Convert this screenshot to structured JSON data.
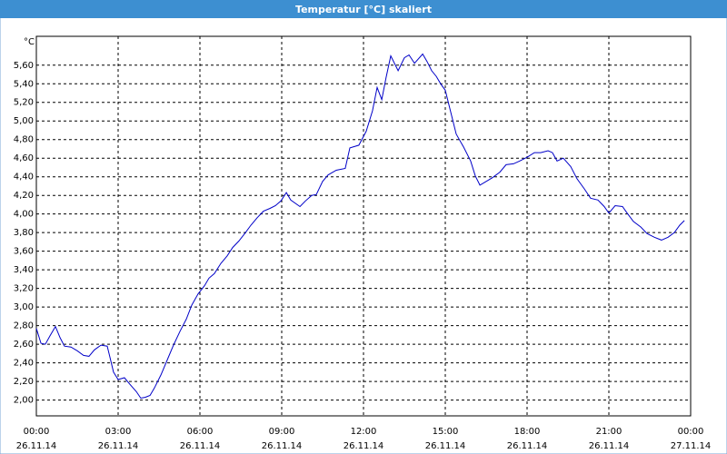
{
  "chart_data": {
    "type": "line",
    "title": "Temperatur [°C] skaliert",
    "y_unit": "°C",
    "series": [
      {
        "name": "Temperatur",
        "color": "#0000c8",
        "x": [
          0,
          0.17,
          0.33,
          0.5,
          0.7,
          0.87,
          1.03,
          1.27,
          1.5,
          1.73,
          1.93,
          2.13,
          2.37,
          2.6,
          2.7,
          2.83,
          3.0,
          3.23,
          3.43,
          3.67,
          3.83,
          4.0,
          4.17,
          4.33,
          4.57,
          4.8,
          5.03,
          5.27,
          5.5,
          5.7,
          5.93,
          6.17,
          6.33,
          6.53,
          6.77,
          7.0,
          7.2,
          7.43,
          7.67,
          7.87,
          8.1,
          8.33,
          8.57,
          8.77,
          8.97,
          9.17,
          9.33,
          9.67,
          9.87,
          10.1,
          10.27,
          10.5,
          10.7,
          11.0,
          11.33,
          11.5,
          11.83,
          12.1,
          12.33,
          12.5,
          12.67,
          12.83,
          13.0,
          13.27,
          13.5,
          13.67,
          13.87,
          14.17,
          14.33,
          14.5,
          14.67,
          14.83,
          15.0,
          15.17,
          15.4,
          15.67,
          15.93,
          16.1,
          16.27,
          16.5,
          16.73,
          17.0,
          17.23,
          17.5,
          17.73,
          18.0,
          18.27,
          18.5,
          18.77,
          18.93,
          19.1,
          19.33,
          19.6,
          19.83,
          20.1,
          20.33,
          20.6,
          20.83,
          21.0,
          21.23,
          21.5,
          21.67,
          21.9,
          22.17,
          22.4,
          22.67,
          22.93,
          23.17,
          23.4,
          23.6,
          23.77
        ],
        "values": [
          2.77,
          2.61,
          2.6,
          2.69,
          2.79,
          2.67,
          2.58,
          2.57,
          2.53,
          2.48,
          2.47,
          2.54,
          2.59,
          2.58,
          2.46,
          2.3,
          2.22,
          2.24,
          2.17,
          2.09,
          2.02,
          2.03,
          2.05,
          2.13,
          2.27,
          2.43,
          2.59,
          2.74,
          2.87,
          3.02,
          3.14,
          3.23,
          3.31,
          3.36,
          3.47,
          3.55,
          3.64,
          3.71,
          3.8,
          3.88,
          3.96,
          4.03,
          4.06,
          4.09,
          4.14,
          4.23,
          4.15,
          4.08,
          4.14,
          4.2,
          4.21,
          4.35,
          4.42,
          4.47,
          4.49,
          4.71,
          4.74,
          4.89,
          5.11,
          5.36,
          5.23,
          5.47,
          5.7,
          5.54,
          5.68,
          5.71,
          5.62,
          5.72,
          5.64,
          5.54,
          5.48,
          5.4,
          5.33,
          5.13,
          4.86,
          4.72,
          4.57,
          4.41,
          4.31,
          4.35,
          4.39,
          4.45,
          4.53,
          4.54,
          4.57,
          4.61,
          4.66,
          4.66,
          4.68,
          4.66,
          4.57,
          4.6,
          4.51,
          4.38,
          4.27,
          4.17,
          4.15,
          4.08,
          4.01,
          4.09,
          4.08,
          4.01,
          3.92,
          3.86,
          3.79,
          3.75,
          3.72,
          3.75,
          3.8,
          3.88,
          3.93
        ]
      }
    ],
    "xlim": [
      0,
      24
    ],
    "xticks": [
      {
        "value": 0,
        "label": "00:00",
        "date": "26.11.14"
      },
      {
        "value": 3,
        "label": "03:00",
        "date": "26.11.14"
      },
      {
        "value": 6,
        "label": "06:00",
        "date": "26.11.14"
      },
      {
        "value": 9,
        "label": "09:00",
        "date": "26.11.14"
      },
      {
        "value": 12,
        "label": "12:00",
        "date": "26.11.14"
      },
      {
        "value": 15,
        "label": "15:00",
        "date": "26.11.14"
      },
      {
        "value": 18,
        "label": "18:00",
        "date": "26.11.14"
      },
      {
        "value": 21,
        "label": "21:00",
        "date": "26.11.14"
      },
      {
        "value": 24,
        "label": "00:00",
        "date": "27.11.14"
      }
    ],
    "ylim": [
      1.83,
      5.91
    ],
    "yticks": [
      {
        "value": 2.0,
        "label": "2,00"
      },
      {
        "value": 2.2,
        "label": "2,20"
      },
      {
        "value": 2.4,
        "label": "2,40"
      },
      {
        "value": 2.6,
        "label": "2,60"
      },
      {
        "value": 2.8,
        "label": "2,80"
      },
      {
        "value": 3.0,
        "label": "3,00"
      },
      {
        "value": 3.2,
        "label": "3,20"
      },
      {
        "value": 3.4,
        "label": "3,40"
      },
      {
        "value": 3.6,
        "label": "3,60"
      },
      {
        "value": 3.8,
        "label": "3,80"
      },
      {
        "value": 4.0,
        "label": "4,00"
      },
      {
        "value": 4.2,
        "label": "4,20"
      },
      {
        "value": 4.4,
        "label": "4,40"
      },
      {
        "value": 4.6,
        "label": "4,60"
      },
      {
        "value": 4.8,
        "label": "4,80"
      },
      {
        "value": 5.0,
        "label": "5,00"
      },
      {
        "value": 5.2,
        "label": "5,20"
      },
      {
        "value": 5.4,
        "label": "5,40"
      },
      {
        "value": 5.6,
        "label": "5,60"
      }
    ],
    "grid": true
  }
}
